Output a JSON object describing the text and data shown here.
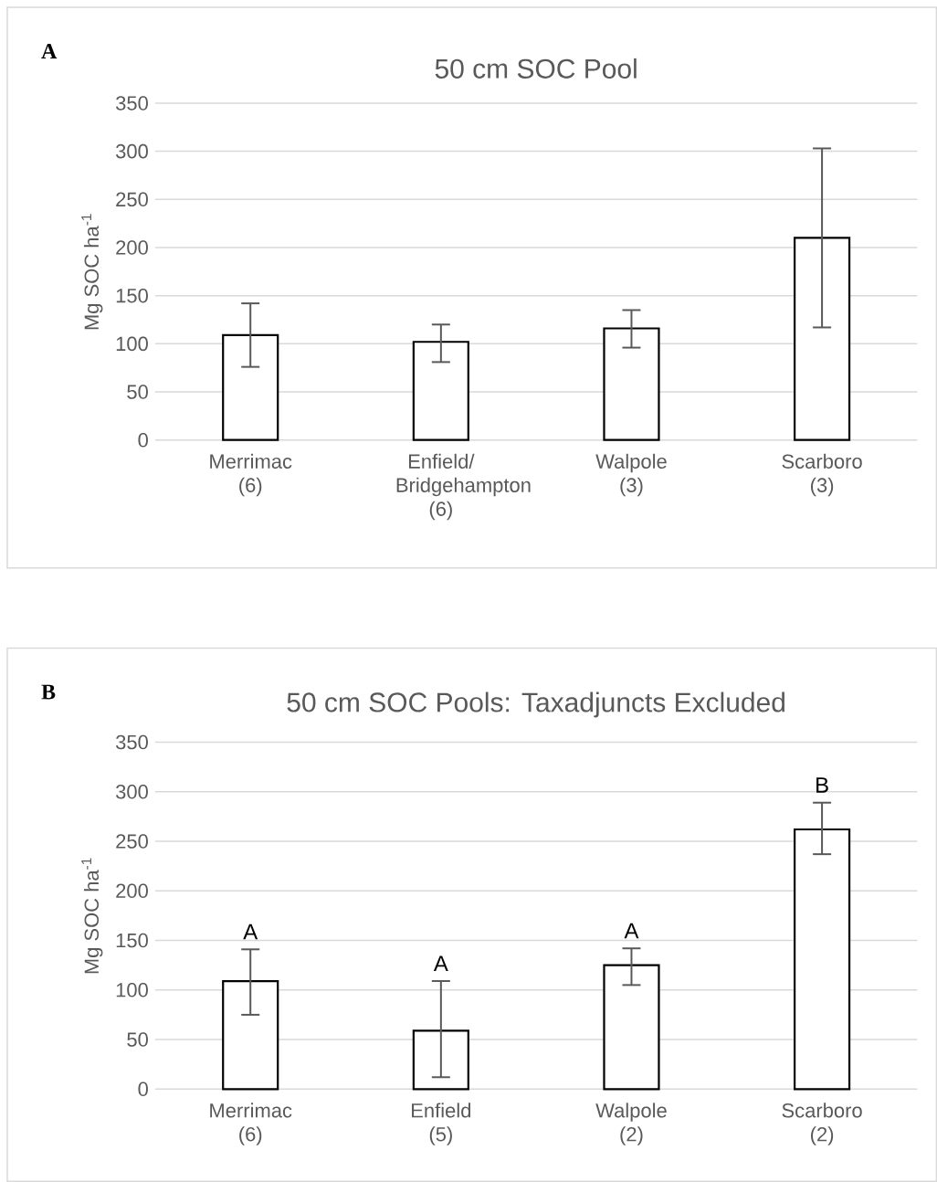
{
  "chart_data": [
    {
      "type": "bar",
      "title": "50 cm SOC Pool",
      "ylabel": "Mg SOC ha$^{-1}$",
      "categories": [
        "Merrimac (6)",
        "Enfield/ Bridgehampton (6)",
        "Walpole (3)",
        "Scarboro (3)"
      ],
      "values": [
        109,
        102,
        116,
        210
      ],
      "color": "#ffffff",
      "errors": [
        [
          76,
          142
        ],
        [
          81,
          120
        ],
        [
          96,
          135
        ],
        [
          117,
          303
        ]
      ],
      "ylim": [
        0,
        350
      ],
      "yticks": [
        0,
        50,
        100,
        150,
        200,
        250,
        300,
        350
      ],
      "grid": "y",
      "annotations": [
        "A"
      ]
    },
    {
      "type": "bar",
      "title": "50 cm SOC Pools: Taxadjuncts Excluded",
      "ylabel": "Mg SOC ha$^{-1}$",
      "categories": [
        "Merrimac (6)",
        "Enfield (5)",
        "Walpole (2)",
        "Scarboro (2)"
      ],
      "values": [
        109,
        59,
        125,
        262
      ],
      "color": "#ffffff",
      "errors": [
        [
          75,
          141
        ],
        [
          12,
          109
        ],
        [
          105,
          142
        ],
        [
          237,
          289
        ]
      ],
      "ylim": [
        0,
        350
      ],
      "yticks": [
        0,
        50,
        100,
        150,
        200,
        250,
        300,
        350
      ],
      "grid": "y",
      "annotations": [
        "B",
        "A",
        "A",
        "A",
        "B"
      ]
    }
  ]
}
